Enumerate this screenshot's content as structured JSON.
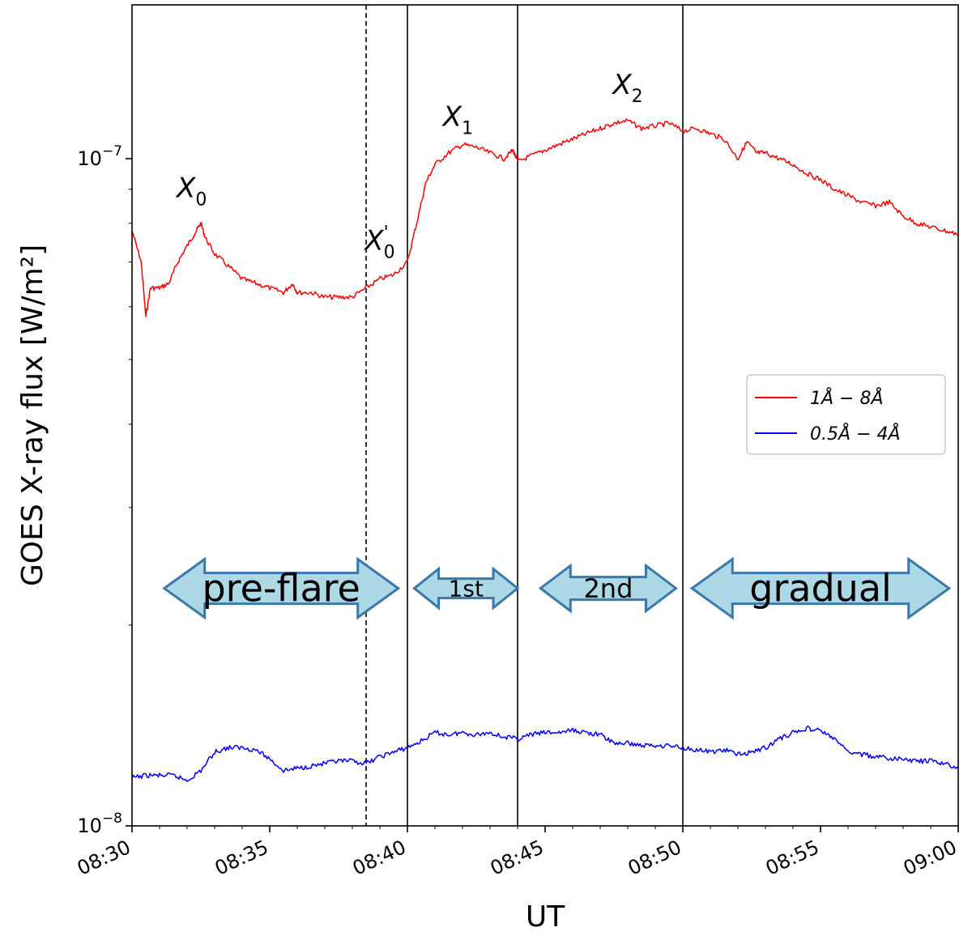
{
  "chart_data": {
    "type": "line",
    "xlabel": "UT",
    "ylabel": "GOES X-ray flux [W/m²]",
    "xlim": [
      "08:30",
      "09:00"
    ],
    "x_ticks": [
      "08:30",
      "08:35",
      "08:40",
      "08:45",
      "08:50",
      "08:55",
      "09:00"
    ],
    "yscale": "log",
    "ylim": [
      1e-08,
      1.7e-07
    ],
    "y_tick_labels": [
      {
        "value": 1e-07,
        "base": "10",
        "exp": "−7"
      },
      {
        "value": 1e-08,
        "base": "10",
        "exp": "−8"
      }
    ],
    "grid": false,
    "legend": {
      "position": "center-right",
      "entries": [
        {
          "label": "1Å − 8Å",
          "color": "#ff0000"
        },
        {
          "label": "0.5Å − 4Å",
          "color": "#0000ff"
        }
      ]
    },
    "series": [
      {
        "label": "1Å − 8Å",
        "color": "#ff0000",
        "points": [
          [
            "08:30:00",
            7.8e-08
          ],
          [
            "08:30:20",
            7e-08
          ],
          [
            "08:30:30",
            5.8e-08
          ],
          [
            "08:30:40",
            6.4e-08
          ],
          [
            "08:31:00",
            6.4e-08
          ],
          [
            "08:31:20",
            6.5e-08
          ],
          [
            "08:31:40",
            7e-08
          ],
          [
            "08:32:00",
            7.4e-08
          ],
          [
            "08:32:20",
            7.8e-08
          ],
          [
            "08:32:30",
            8e-08
          ],
          [
            "08:32:40",
            7.6e-08
          ],
          [
            "08:33:00",
            7.2e-08
          ],
          [
            "08:33:30",
            6.9e-08
          ],
          [
            "08:34:00",
            6.6e-08
          ],
          [
            "08:34:30",
            6.5e-08
          ],
          [
            "08:35:00",
            6.4e-08
          ],
          [
            "08:35:30",
            6.3e-08
          ],
          [
            "08:35:50",
            6.5e-08
          ],
          [
            "08:36:00",
            6.3e-08
          ],
          [
            "08:36:30",
            6.3e-08
          ],
          [
            "08:37:00",
            6.2e-08
          ],
          [
            "08:37:30",
            6.2e-08
          ],
          [
            "08:38:00",
            6.2e-08
          ],
          [
            "08:38:30",
            6.4e-08
          ],
          [
            "08:39:00",
            6.6e-08
          ],
          [
            "08:39:30",
            6.7e-08
          ],
          [
            "08:40:00",
            7e-08
          ],
          [
            "08:40:20",
            8e-08
          ],
          [
            "08:40:40",
            9.2e-08
          ],
          [
            "08:41:00",
            9.8e-08
          ],
          [
            "08:41:30",
            1.02e-07
          ],
          [
            "08:42:00",
            1.05e-07
          ],
          [
            "08:42:30",
            1.04e-07
          ],
          [
            "08:43:00",
            1.02e-07
          ],
          [
            "08:43:30",
            1e-07
          ],
          [
            "08:43:50",
            1.03e-07
          ],
          [
            "08:44:00",
            9.9e-08
          ],
          [
            "08:44:30",
            1.01e-07
          ],
          [
            "08:45:00",
            1.03e-07
          ],
          [
            "08:45:30",
            1.05e-07
          ],
          [
            "08:46:00",
            1.07e-07
          ],
          [
            "08:46:30",
            1.09e-07
          ],
          [
            "08:47:00",
            1.11e-07
          ],
          [
            "08:47:30",
            1.13e-07
          ],
          [
            "08:48:00",
            1.14e-07
          ],
          [
            "08:48:30",
            1.11e-07
          ],
          [
            "08:49:00",
            1.12e-07
          ],
          [
            "08:49:30",
            1.13e-07
          ],
          [
            "08:50:00",
            1.1e-07
          ],
          [
            "08:50:30",
            1.11e-07
          ],
          [
            "08:51:00",
            1.09e-07
          ],
          [
            "08:51:30",
            1.07e-07
          ],
          [
            "08:52:00",
            1e-07
          ],
          [
            "08:52:20",
            1.06e-07
          ],
          [
            "08:52:40",
            1.02e-07
          ],
          [
            "08:53:00",
            1.02e-07
          ],
          [
            "08:53:30",
            1e-07
          ],
          [
            "08:54:00",
            9.8e-08
          ],
          [
            "08:54:30",
            9.5e-08
          ],
          [
            "08:55:00",
            9.3e-08
          ],
          [
            "08:55:30",
            9e-08
          ],
          [
            "08:56:00",
            8.8e-08
          ],
          [
            "08:56:30",
            8.6e-08
          ],
          [
            "08:57:00",
            8.5e-08
          ],
          [
            "08:57:30",
            8.6e-08
          ],
          [
            "08:58:00",
            8.2e-08
          ],
          [
            "08:58:30",
            8e-08
          ],
          [
            "08:59:00",
            7.9e-08
          ],
          [
            "08:59:30",
            7.8e-08
          ],
          [
            "09:00:00",
            7.7e-08
          ]
        ]
      },
      {
        "label": "0.5Å − 4Å",
        "color": "#0000ff",
        "points": [
          [
            "08:30:00",
            1.18e-08
          ],
          [
            "08:30:30",
            1.19e-08
          ],
          [
            "08:31:00",
            1.19e-08
          ],
          [
            "08:31:30",
            1.19e-08
          ],
          [
            "08:32:00",
            1.17e-08
          ],
          [
            "08:32:30",
            1.21e-08
          ],
          [
            "08:33:00",
            1.29e-08
          ],
          [
            "08:33:30",
            1.31e-08
          ],
          [
            "08:34:00",
            1.31e-08
          ],
          [
            "08:34:30",
            1.3e-08
          ],
          [
            "08:35:00",
            1.26e-08
          ],
          [
            "08:35:30",
            1.21e-08
          ],
          [
            "08:36:00",
            1.22e-08
          ],
          [
            "08:36:30",
            1.23e-08
          ],
          [
            "08:37:00",
            1.24e-08
          ],
          [
            "08:37:30",
            1.25e-08
          ],
          [
            "08:38:00",
            1.25e-08
          ],
          [
            "08:38:30",
            1.24e-08
          ],
          [
            "08:39:00",
            1.27e-08
          ],
          [
            "08:39:30",
            1.29e-08
          ],
          [
            "08:40:00",
            1.31e-08
          ],
          [
            "08:40:30",
            1.34e-08
          ],
          [
            "08:41:00",
            1.38e-08
          ],
          [
            "08:41:30",
            1.37e-08
          ],
          [
            "08:42:00",
            1.38e-08
          ],
          [
            "08:42:30",
            1.37e-08
          ],
          [
            "08:43:00",
            1.38e-08
          ],
          [
            "08:43:30",
            1.36e-08
          ],
          [
            "08:44:00",
            1.35e-08
          ],
          [
            "08:44:30",
            1.37e-08
          ],
          [
            "08:45:00",
            1.38e-08
          ],
          [
            "08:45:30",
            1.38e-08
          ],
          [
            "08:46:00",
            1.39e-08
          ],
          [
            "08:46:30",
            1.38e-08
          ],
          [
            "08:47:00",
            1.37e-08
          ],
          [
            "08:47:30",
            1.33e-08
          ],
          [
            "08:48:00",
            1.33e-08
          ],
          [
            "08:48:30",
            1.32e-08
          ],
          [
            "08:49:00",
            1.32e-08
          ],
          [
            "08:49:30",
            1.32e-08
          ],
          [
            "08:50:00",
            1.31e-08
          ],
          [
            "08:50:30",
            1.3e-08
          ],
          [
            "08:51:00",
            1.29e-08
          ],
          [
            "08:51:30",
            1.3e-08
          ],
          [
            "08:52:00",
            1.28e-08
          ],
          [
            "08:52:30",
            1.29e-08
          ],
          [
            "08:53:00",
            1.31e-08
          ],
          [
            "08:53:30",
            1.35e-08
          ],
          [
            "08:54:00",
            1.38e-08
          ],
          [
            "08:54:30",
            1.4e-08
          ],
          [
            "08:55:00",
            1.39e-08
          ],
          [
            "08:55:30",
            1.35e-08
          ],
          [
            "08:56:00",
            1.29e-08
          ],
          [
            "08:56:30",
            1.28e-08
          ],
          [
            "08:57:00",
            1.27e-08
          ],
          [
            "08:57:30",
            1.26e-08
          ],
          [
            "08:58:00",
            1.26e-08
          ],
          [
            "08:58:30",
            1.25e-08
          ],
          [
            "08:59:00",
            1.25e-08
          ],
          [
            "08:59:30",
            1.24e-08
          ],
          [
            "09:00:00",
            1.22e-08
          ]
        ]
      }
    ],
    "vertical_lines": [
      {
        "x": "08:38:30",
        "style": "dashed"
      },
      {
        "x": "08:40:00",
        "style": "solid"
      },
      {
        "x": "08:44:00",
        "style": "solid"
      },
      {
        "x": "08:50:00",
        "style": "solid"
      }
    ],
    "annotations": [
      {
        "base": "X",
        "sub": "0",
        "sup": "",
        "x": "08:32:10",
        "y": 8.75e-08
      },
      {
        "base": "X",
        "sub": "0",
        "sup": "'",
        "x": "08:39:00",
        "y": 7.3e-08
      },
      {
        "base": "X",
        "sub": "1",
        "sup": "",
        "x": "08:41:50",
        "y": 1.12e-07
      },
      {
        "base": "X",
        "sub": "2",
        "sup": "",
        "x": "08:48:00",
        "y": 1.25e-07
      }
    ],
    "phases": [
      {
        "label": "pre-flare",
        "x_start": "08:31:10",
        "x_end": "08:39:40",
        "y": 2.27e-08,
        "size": "large"
      },
      {
        "label": "1st",
        "x_start": "08:40:15",
        "x_end": "08:44:00",
        "y": 2.27e-08,
        "size": "small"
      },
      {
        "label": "2nd",
        "x_start": "08:44:50",
        "x_end": "08:49:45",
        "y": 2.27e-08,
        "size": "medium"
      },
      {
        "label": "gradual",
        "x_start": "08:50:20",
        "x_end": "08:59:40",
        "y": 2.27e-08,
        "size": "large"
      }
    ]
  }
}
